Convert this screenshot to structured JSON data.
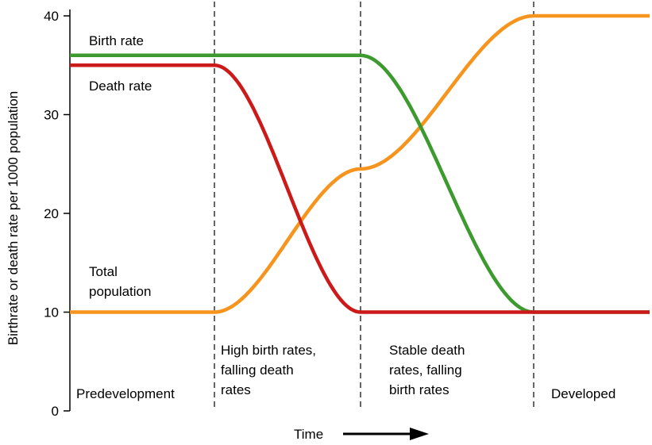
{
  "chart_data": {
    "type": "line",
    "ylabel": "Birthrate or death rate per 1000 population",
    "xlabel": "Time",
    "ylim": [
      0,
      40
    ],
    "yticks": [
      "0",
      "10",
      "20",
      "30",
      "40"
    ],
    "ytick_values": [
      0,
      10,
      20,
      30,
      40
    ],
    "grid": false,
    "phases": [
      {
        "lines": [
          "Predevelopment"
        ]
      },
      {
        "lines": [
          "High birth rates,",
          "falling death",
          "rates"
        ]
      },
      {
        "lines": [
          "Stable death",
          "rates, falling",
          "birth rates"
        ]
      },
      {
        "lines": [
          "Developed"
        ]
      }
    ],
    "series": [
      {
        "name": "Birth rate",
        "label_lines": [
          "Birth rate"
        ],
        "color": "#3c9a2e",
        "x": [
          0,
          1,
          2,
          3,
          4
        ],
        "y": [
          36,
          36,
          36,
          10,
          10
        ]
      },
      {
        "name": "Death rate",
        "label_lines": [
          "Death rate"
        ],
        "color": "#cc1a1a",
        "x": [
          0,
          1,
          2,
          3,
          4
        ],
        "y": [
          35,
          35,
          10,
          10,
          10
        ]
      },
      {
        "name": "Total population",
        "label_lines": [
          "Total",
          "population"
        ],
        "color": "#f7941d",
        "x": [
          0,
          1,
          2,
          3,
          4
        ],
        "y": [
          10,
          10,
          24.5,
          40,
          40
        ]
      }
    ]
  }
}
